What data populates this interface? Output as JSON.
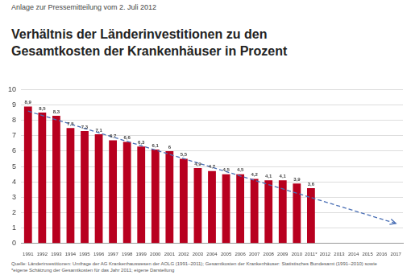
{
  "header": "Anlage zur Pressemitteilung vom 2. Juli 2012",
  "chart_data": {
    "type": "bar",
    "title": "Verhältnis der Länderinvestitionen zu den Gesamtkosten der Krankenhäuser in Prozent",
    "categories": [
      "1991",
      "1992",
      "1993",
      "1994",
      "1995",
      "1996",
      "1997",
      "1998",
      "1999",
      "2000",
      "2001",
      "2002",
      "2003",
      "2004",
      "2005",
      "2006",
      "2007",
      "2008",
      "2009",
      "2010",
      "2011*",
      "2012",
      "2013",
      "2014",
      "2015",
      "2016",
      "2017"
    ],
    "series": [
      {
        "type": "bar",
        "color": "#b8001f",
        "values": [
          8.9,
          8.5,
          8.3,
          7.5,
          7.3,
          7.1,
          6.7,
          6.6,
          6.3,
          6.1,
          6.0,
          5.5,
          4.9,
          4.7,
          4.5,
          4.5,
          4.2,
          4.1,
          4.1,
          3.9,
          3.6,
          null,
          null,
          null,
          null,
          null,
          null
        ],
        "value_labels": [
          "8,9",
          "8,5",
          "8,3",
          "7,5",
          "7,3",
          "7,1",
          "6,7",
          "6,6",
          "6,3",
          "6,1",
          "6",
          "5,5",
          "4,9",
          "4,7",
          "4,5",
          "4,5",
          "4,2",
          "4,1",
          "4,1",
          "3,9",
          "3,6",
          null,
          null,
          null,
          null,
          null,
          null
        ]
      },
      {
        "type": "line",
        "color": "#4a6fb5",
        "line_style": "dashed",
        "marker": "arrow",
        "x": [
          "1991",
          "2017"
        ],
        "values": [
          8.6,
          1.3
        ]
      }
    ],
    "ylim": [
      0,
      10
    ],
    "yticks": [
      0,
      1,
      2,
      3,
      4,
      5,
      6,
      7,
      8,
      9,
      10
    ],
    "grid": true,
    "data_labels": true
  },
  "source": "Quelle: Länderinvestitionen: Umfrage der AG Krankenhauswesen der AOLG (1991–2011); Gesamtkosten der Krankenhäuser: Statistisches Bundesamt (1991–2010) sowie *eigene Schätzung der Gesamtkosten für das Jahr 2011; eigene Darstellung"
}
